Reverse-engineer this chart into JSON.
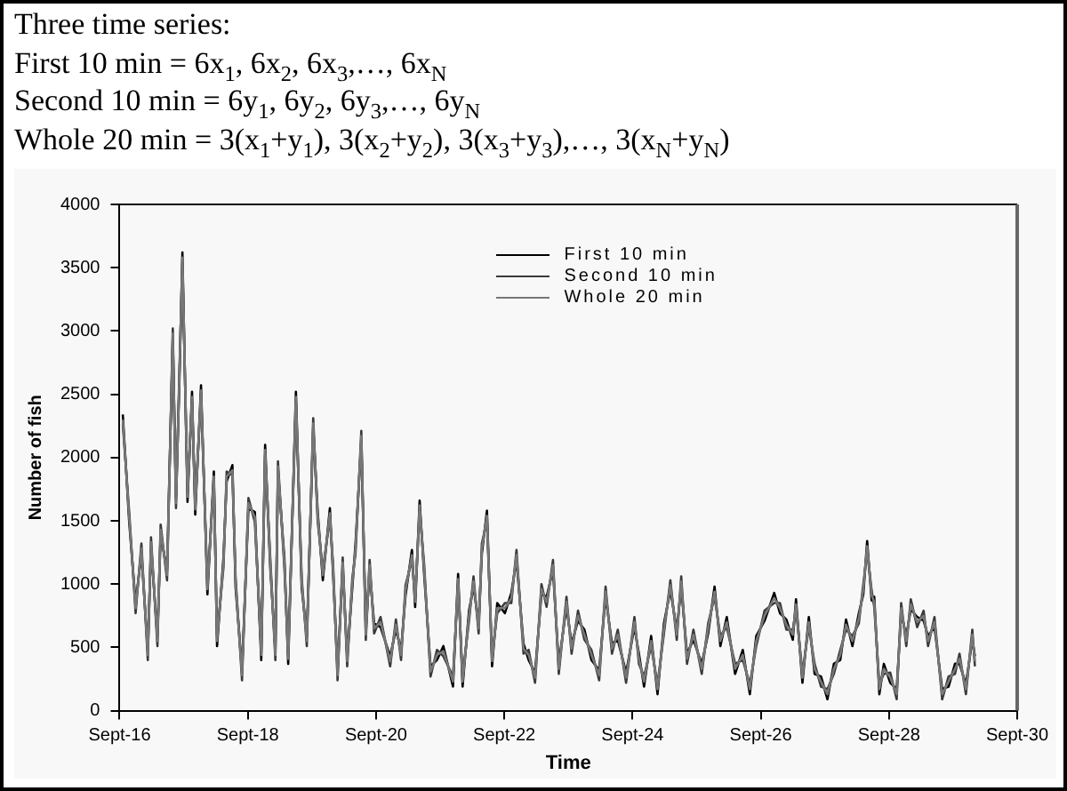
{
  "chart_data": {
    "type": "line",
    "title": "Three time series:",
    "annotations": [
      "First 10 min = 6x$_{1}$, 6x$_{2}$, 6x$_{3}$,…, 6x$_{N}$",
      "Second 10 min = 6y$_{1}$, 6y$_{2}$, 6y$_{3}$,…, 6y$_{N}$",
      "Whole 20 min = 3(x$_{1}$+y$_{1}$), 3(x$_{2}$+y$_{2}$), 3(x$_{3}$+y$_{3}$),…, 3(x$_{N}$+y$_{N}$)"
    ],
    "xlabel": "Time",
    "ylabel": "Number of fish",
    "x": [
      "--09-16T01:12",
      "--09-16T03:36",
      "--09-16T06:00",
      "--09-16T08:10",
      "--09-16T10:34",
      "--09-16T11:46",
      "--09-16T14:10",
      "--09-16T15:22",
      "--09-16T17:46",
      "--09-16T19:55",
      "--09-16T21:07",
      "--09-16T22:19",
      "--09-16T23:31",
      "--09-17T01:26",
      "--09-17T03:07",
      "--09-17T04:19",
      "--09-17T06:29",
      "--09-17T08:53",
      "--09-17T11:17",
      "--09-17T12:29",
      "--09-17T14:53",
      "--09-17T16:05",
      "--09-17T18:14",
      "--09-17T19:26",
      "--09-17T21:50",
      "--09-18T00:14",
      "--09-18T02:38",
      "--09-18T05:02",
      "--09-18T06:29",
      "--09-18T08:24",
      "--09-18T10:19",
      "--09-18T11:17",
      "--09-18T13:41",
      "--09-18T15:07",
      "--09-18T18:00",
      "--09-18T20:10",
      "--09-18T22:05",
      "--09-19T00:29",
      "--09-19T02:10",
      "--09-19T04:05",
      "--09-19T06:43",
      "--09-19T07:55",
      "--09-19T09:36",
      "--09-19T11:31",
      "--09-19T13:12",
      "--09-19T15:07",
      "--09-19T16:19",
      "--09-19T18:29",
      "--09-19T20:10",
      "--09-19T21:36",
      "--09-19T23:17",
      "--09-20T01:41",
      "--09-20T05:17",
      "--09-20T07:26",
      "--09-20T09:22",
      "--09-20T11:02",
      "--09-20T13:26",
      "--09-20T14:38",
      "--09-20T16:19",
      "--09-20T18:00",
      "--09-20T20:24",
      "--09-20T22:48",
      "--09-21T01:12",
      "--09-21T04:48",
      "--09-21T06:43",
      "--09-21T08:24",
      "--09-21T10:48",
      "--09-21T12:29",
      "--09-21T14:24",
      "--09-21T15:36",
      "--09-21T17:31",
      "--09-21T19:26",
      "--09-21T21:22",
      "--09-22T00:14",
      "--09-22T02:38",
      "--09-22T04:34",
      "--09-22T07:12",
      "--09-22T09:07",
      "--09-22T11:31",
      "--09-22T13:55",
      "--09-22T15:50",
      "--09-22T18:14",
      "--09-22T20:24",
      "--09-22T23:17",
      "--09-23T01:12",
      "--09-23T03:36",
      "--09-23T06:00",
      "--09-23T08:38",
      "--09-23T11:31",
      "--09-23T13:55",
      "--09-23T16:19",
      "--09-23T18:29",
      "--09-23T21:36",
      "--09-24T00:43",
      "--09-24T02:24",
      "--09-24T04:19",
      "--09-24T06:58",
      "--09-24T09:22",
      "--09-24T11:46",
      "--09-24T14:10",
      "--09-24T16:34",
      "--09-24T18:14",
      "--09-24T20:24",
      "--09-24T22:48",
      "--09-25T01:55",
      "--09-25T04:19",
      "--09-25T06:43",
      "--09-25T08:53",
      "--09-25T11:17",
      "--09-25T14:24",
      "--09-25T17:17",
      "--09-25T19:55",
      "--09-25T22:19",
      "--09-26T01:26",
      "--09-26T05:02",
      "--09-26T07:12",
      "--09-26T09:36",
      "--09-26T12:00",
      "--09-26T13:12",
      "--09-26T15:36",
      "--09-26T18:00",
      "--09-26T20:10",
      "--09-26T22:34",
      "--09-27T00:58",
      "--09-27T03:22",
      "--09-27T05:46",
      "--09-27T07:55",
      "--09-27T10:19",
      "--09-27T12:43",
      "--09-27T14:24",
      "--09-27T15:50",
      "--09-27T17:31",
      "--09-27T18:29",
      "--09-27T20:24",
      "--09-27T22:05",
      "--09-28T00:29",
      "--09-28T02:53",
      "--09-28T04:34",
      "--09-28T06:29",
      "--09-28T08:10",
      "--09-28T10:34",
      "--09-28T12:58",
      "--09-28T14:38",
      "--09-28T17:02",
      "--09-28T19:55",
      "--09-28T22:19",
      "--09-29T00:43",
      "--09-29T02:24",
      "--09-29T04:48",
      "--09-29T07:12",
      "--09-29T08:10"
    ],
    "series": [
      {
        "name": "First 10 min",
        "color": "#000000",
        "values": [
          2340,
          1490,
          850,
          1240,
          480,
          1290,
          590,
          1390,
          1110,
          2940,
          1680,
          2540,
          3620,
          1650,
          2520,
          1550,
          2570,
          920,
          1890,
          510,
          1210,
          1810,
          1940,
          970,
          320,
          1600,
          1570,
          400,
          2100,
          1130,
          480,
          1890,
          1210,
          370,
          2520,
          970,
          590,
          2230,
          1570,
          1030,
          1600,
          1080,
          320,
          1130,
          430,
          970,
          1320,
          2130,
          640,
          1110,
          690,
          660,
          430,
          640,
          480,
          910,
          1270,
          820,
          1660,
          1080,
          350,
          400,
          510,
          190,
          1080,
          190,
          790,
          980,
          690,
          1240,
          1580,
          350,
          850,
          770,
          930,
          1190,
          530,
          400,
          300,
          920,
          900,
          1110,
          370,
          820,
          530,
          710,
          640,
          400,
          320,
          900,
          530,
          560,
          300,
          660,
          450,
          190,
          590,
          130,
          690,
          950,
          640,
          980,
          450,
          560,
          370,
          610,
          980,
          510,
          740,
          290,
          480,
          130,
          590,
          710,
          930,
          770,
          720,
          560,
          880,
          220,
          740,
          290,
          270,
          90,
          370,
          400,
          720,
          510,
          770,
          920,
          1340,
          870,
          900,
          130,
          370,
          220,
          170,
          770,
          590,
          800,
          740,
          710,
          590,
          660,
          170,
          190,
          370,
          370,
          210,
          560,
          430
        ]
      },
      {
        "name": "Second 10 min",
        "color": "#3a3a3a",
        "values": [
          2260,
          1570,
          770,
          1320,
          400,
          1370,
          510,
          1470,
          1030,
          3020,
          1600,
          2620,
          3540,
          1730,
          2440,
          1630,
          2490,
          1000,
          1810,
          590,
          1130,
          1890,
          1860,
          1050,
          240,
          1680,
          1490,
          480,
          2020,
          1210,
          400,
          1970,
          1130,
          450,
          2440,
          1050,
          510,
          2310,
          1490,
          1110,
          1520,
          1160,
          240,
          1210,
          350,
          1050,
          1240,
          2210,
          560,
          1190,
          610,
          740,
          350,
          720,
          400,
          990,
          1190,
          900,
          1580,
          1160,
          270,
          480,
          430,
          270,
          1000,
          270,
          710,
          1060,
          610,
          1320,
          1500,
          430,
          770,
          850,
          850,
          1270,
          450,
          480,
          220,
          1000,
          820,
          1190,
          290,
          900,
          450,
          790,
          560,
          480,
          240,
          980,
          450,
          640,
          220,
          740,
          370,
          270,
          510,
          210,
          610,
          1030,
          560,
          1060,
          370,
          640,
          290,
          690,
          900,
          590,
          660,
          370,
          400,
          210,
          510,
          790,
          850,
          850,
          640,
          640,
          800,
          300,
          660,
          370,
          190,
          170,
          290,
          480,
          640,
          590,
          690,
          1000,
          1260,
          950,
          820,
          210,
          290,
          300,
          90,
          850,
          510,
          880,
          660,
          790,
          510,
          740,
          90,
          270,
          290,
          450,
          130,
          640,
          350
        ]
      },
      {
        "name": "Whole 20 min",
        "color": "#777777",
        "values": [
          2300,
          1530,
          810,
          1280,
          440,
          1330,
          550,
          1430,
          1070,
          2980,
          1640,
          2580,
          3580,
          1690,
          2480,
          1590,
          2530,
          960,
          1850,
          550,
          1170,
          1850,
          1900,
          1010,
          280,
          1640,
          1530,
          440,
          2060,
          1170,
          440,
          1930,
          1170,
          410,
          2480,
          1010,
          550,
          2270,
          1530,
          1070,
          1560,
          1120,
          280,
          1170,
          390,
          1010,
          1280,
          2170,
          600,
          1150,
          650,
          700,
          390,
          680,
          440,
          950,
          1230,
          860,
          1620,
          1120,
          310,
          440,
          470,
          230,
          1040,
          230,
          750,
          1020,
          650,
          1280,
          1540,
          390,
          810,
          810,
          890,
          1230,
          490,
          440,
          260,
          960,
          860,
          1150,
          330,
          860,
          490,
          750,
          600,
          440,
          280,
          940,
          490,
          600,
          260,
          700,
          410,
          230,
          550,
          170,
          650,
          990,
          600,
          1020,
          410,
          600,
          330,
          650,
          940,
          550,
          700,
          330,
          440,
          170,
          550,
          750,
          890,
          810,
          680,
          600,
          840,
          260,
          700,
          330,
          230,
          130,
          330,
          440,
          680,
          550,
          730,
          960,
          1300,
          910,
          860,
          170,
          330,
          260,
          130,
          810,
          550,
          840,
          700,
          750,
          550,
          700,
          130,
          230,
          330,
          410,
          170,
          600,
          390
        ]
      }
    ],
    "xlim": [
      "--09-16",
      "--09-30"
    ],
    "xticks": [
      {
        "value": "--09-16",
        "label": "Sept-16"
      },
      {
        "value": "--09-18",
        "label": "Sept-18"
      },
      {
        "value": "--09-20",
        "label": "Sept-20"
      },
      {
        "value": "--09-22",
        "label": "Sept-22"
      },
      {
        "value": "--09-24",
        "label": "Sept-24"
      },
      {
        "value": "--09-26",
        "label": "Sept-26"
      },
      {
        "value": "--09-28",
        "label": "Sept-28"
      },
      {
        "value": "--09-30",
        "label": "Sept-30"
      }
    ],
    "ylim": [
      0,
      4000
    ],
    "yticks": [
      0,
      500,
      1000,
      1500,
      2000,
      2500,
      3000,
      3500,
      4000
    ],
    "grid": false,
    "legend": "top"
  }
}
